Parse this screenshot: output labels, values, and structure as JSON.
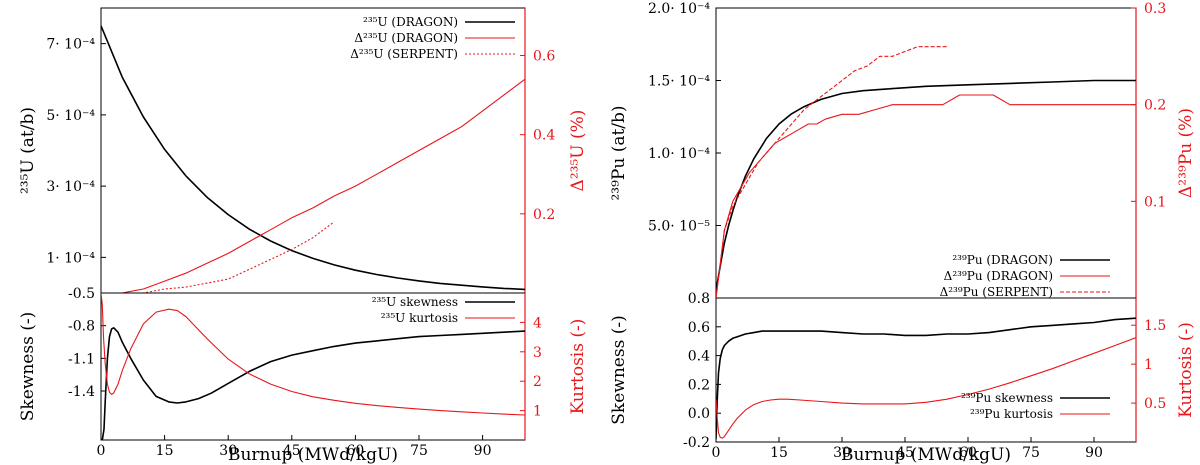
{
  "colors": {
    "black": "#000000",
    "red": "#e8161a"
  },
  "chart_data": [
    {
      "id": "left",
      "type": "line",
      "xlabel": "Burnup (MWd/kgU)",
      "xlim": [
        0,
        100
      ],
      "xticks": [
        "0",
        "15",
        "30",
        "45",
        "60",
        "75",
        "90"
      ],
      "xtick_values": [
        0,
        15,
        30,
        45,
        60,
        75,
        90
      ],
      "top": {
        "ylabel": "²³⁵U (at/b)",
        "ylim": [
          0,
          0.0008
        ],
        "yticks": [
          {
            "v": 0.0007,
            "t": "7· 10⁻⁴"
          },
          {
            "v": 0.0005,
            "t": "5· 10⁻⁴"
          },
          {
            "v": 0.0003,
            "t": "3· 10⁻⁴"
          },
          {
            "v": 0.0001,
            "t": "1· 10⁻⁴"
          }
        ],
        "y2label": "Δ²³⁵U (%)",
        "y2lim": [
          0,
          0.72
        ],
        "y2ticks": [
          {
            "v": 0.2,
            "t": "0.2"
          },
          {
            "v": 0.4,
            "t": "0.4"
          },
          {
            "v": 0.6,
            "t": "0.6"
          }
        ],
        "legend": [
          "²³⁵U (DRAGON)",
          "Δ²³⁵U (DRAGON)",
          "Δ²³⁵U (SERPENT)"
        ],
        "series": [
          {
            "axis": "y",
            "color": "black",
            "style": "solid",
            "x": [
              0,
              5,
              10,
              15,
              20,
              25,
              30,
              35,
              40,
              45,
              50,
              55,
              60,
              65,
              70,
              75,
              80,
              85,
              90,
              95,
              100
            ],
            "y": [
              0.00075,
              0.000606,
              0.000494,
              0.000403,
              0.000329,
              0.000269,
              0.00022,
              0.000179,
              0.000146,
              0.000119,
              9.7e-05,
              7.9e-05,
              6.4e-05,
              5.2e-05,
              4.2e-05,
              3.4e-05,
              2.7e-05,
              2.2e-05,
              1.7e-05,
              1.3e-05,
              1e-05
            ]
          },
          {
            "axis": "y2",
            "color": "red",
            "style": "solid",
            "x": [
              5,
              10,
              15,
              20,
              25,
              30,
              35,
              40,
              45,
              50,
              55,
              60,
              65,
              70,
              75,
              80,
              85,
              90,
              95,
              100
            ],
            "y": [
              0.0,
              0.01,
              0.03,
              0.05,
              0.075,
              0.1,
              0.13,
              0.16,
              0.19,
              0.215,
              0.245,
              0.27,
              0.3,
              0.33,
              0.36,
              0.39,
              0.42,
              0.46,
              0.5,
              0.54
            ]
          },
          {
            "axis": "y2",
            "color": "red",
            "style": "dotted",
            "x": [
              5,
              10,
              15,
              20,
              25,
              30,
              35,
              40,
              45,
              50,
              55
            ],
            "y": [
              0.0,
              0.0,
              0.01,
              0.015,
              0.025,
              0.035,
              0.06,
              0.085,
              0.11,
              0.14,
              0.18
            ]
          }
        ]
      },
      "bottom": {
        "ylabel": "Skewness (-)",
        "ylim": [
          -1.85,
          -0.5
        ],
        "yticks": [
          {
            "v": -0.5,
            "t": "-0.5"
          },
          {
            "v": -0.8,
            "t": "-0.8"
          },
          {
            "v": -1.1,
            "t": "-1.1"
          },
          {
            "v": -1.4,
            "t": "-1.4"
          }
        ],
        "y2label": "Kurtosis (-)",
        "y2lim": [
          0,
          5.0
        ],
        "y2ticks": [
          {
            "v": 1,
            "t": "1"
          },
          {
            "v": 2,
            "t": "2"
          },
          {
            "v": 3,
            "t": "3"
          },
          {
            "v": 4,
            "t": "4"
          }
        ],
        "legend": [
          "²³⁵U skewness",
          "²³⁵U kurtosis"
        ],
        "series": [
          {
            "axis": "y",
            "color": "black",
            "style": "solid",
            "x": [
              0.3,
              0.7,
              1.0,
              1.5,
              2.0,
              2.5,
              3.0,
              4.0,
              5.0,
              7.0,
              10.0,
              13.0,
              16.0,
              18.0,
              20.0,
              23.0,
              26.0,
              30.0,
              35.0,
              40.0,
              45.0,
              50.0,
              55.0,
              60.0,
              65.0,
              70.0,
              75.0,
              80.0,
              85.0,
              90.0,
              95.0,
              100.0
            ],
            "y": [
              -1.85,
              -1.75,
              -1.5,
              -1.1,
              -0.9,
              -0.83,
              -0.82,
              -0.86,
              -0.95,
              -1.1,
              -1.3,
              -1.45,
              -1.5,
              -1.51,
              -1.5,
              -1.47,
              -1.42,
              -1.33,
              -1.22,
              -1.13,
              -1.07,
              -1.03,
              -0.99,
              -0.96,
              -0.94,
              -0.92,
              -0.9,
              -0.89,
              -0.88,
              -0.87,
              -0.86,
              -0.85
            ]
          },
          {
            "axis": "y2",
            "color": "red",
            "style": "solid",
            "x": [
              0.0,
              0.3,
              0.6,
              1.0,
              1.5,
              2.0,
              2.5,
              3.0,
              4.0,
              5.0,
              7.0,
              10.0,
              13.0,
              16.0,
              18.0,
              20.0,
              25.0,
              30.0,
              35.0,
              40.0,
              45.0,
              50.0,
              55.0,
              60.0,
              65.0,
              70.0,
              75.0,
              80.0,
              85.0,
              90.0,
              95.0,
              100.0
            ],
            "y": [
              5.0,
              4.6,
              3.5,
              2.6,
              1.9,
              1.62,
              1.55,
              1.6,
              1.9,
              2.35,
              3.1,
              3.95,
              4.35,
              4.45,
              4.4,
              4.2,
              3.45,
              2.75,
              2.25,
              1.9,
              1.65,
              1.47,
              1.35,
              1.25,
              1.17,
              1.11,
              1.05,
              1.0,
              0.96,
              0.92,
              0.88,
              0.85
            ]
          }
        ]
      }
    },
    {
      "id": "right",
      "type": "line",
      "xlabel": "Burnup (MWd/kgU)",
      "xlim": [
        0,
        100
      ],
      "xticks": [
        "0",
        "15",
        "30",
        "45",
        "60",
        "75",
        "90"
      ],
      "xtick_values": [
        0,
        15,
        30,
        45,
        60,
        75,
        90
      ],
      "top": {
        "ylabel": "²³⁹Pu (at/b)",
        "ylim": [
          0,
          0.0002
        ],
        "yticks": [
          {
            "v": 0.0002,
            "t": "2.0· 10⁻⁴"
          },
          {
            "v": 0.00015,
            "t": "1.5· 10⁻⁴"
          },
          {
            "v": 0.0001,
            "t": "1.0· 10⁻⁴"
          },
          {
            "v": 5e-05,
            "t": "5.0· 10⁻⁵"
          }
        ],
        "y2label": "Δ²³⁹Pu (%)",
        "y2lim": [
          0,
          0.3
        ],
        "y2ticks": [
          {
            "v": 0.3,
            "t": "0.3"
          },
          {
            "v": 0.2,
            "t": "0.2"
          },
          {
            "v": 0.1,
            "t": "0.1"
          }
        ],
        "legend": [
          "²³⁹Pu (DRAGON)",
          "Δ²³⁹Pu (DRAGON)",
          "Δ²³⁹Pu (SERPENT)"
        ],
        "series": [
          {
            "axis": "y",
            "color": "black",
            "style": "solid",
            "x": [
              0,
              1,
              2,
              3,
              4,
              5,
              7,
              9,
              12,
              15,
              18,
              21,
              25,
              30,
              35,
              40,
              50,
              60,
              70,
              80,
              90,
              100
            ],
            "y": [
              5e-06,
              2.2e-05,
              3.8e-05,
              5e-05,
              6e-05,
              6.9e-05,
              8.4e-05,
              9.6e-05,
              0.00011,
              0.00012,
              0.000127,
              0.000132,
              0.000137,
              0.000141,
              0.000143,
              0.000144,
              0.000146,
              0.000147,
              0.000148,
              0.000149,
              0.00015,
              0.00015
            ]
          },
          {
            "axis": "y2",
            "color": "red",
            "style": "solid",
            "x": [
              0,
              2,
              4,
              6,
              8,
              10,
              12,
              14,
              16,
              18,
              20,
              22,
              24,
              26,
              30,
              34,
              38,
              42,
              46,
              50,
              54,
              58,
              62,
              66,
              70,
              80,
              90,
              100
            ],
            "y": [
              0.0,
              0.07,
              0.1,
              0.115,
              0.13,
              0.14,
              0.15,
              0.16,
              0.165,
              0.17,
              0.175,
              0.18,
              0.18,
              0.185,
              0.19,
              0.19,
              0.195,
              0.2,
              0.2,
              0.2,
              0.2,
              0.21,
              0.21,
              0.21,
              0.2,
              0.2,
              0.2,
              0.2
            ]
          },
          {
            "axis": "y2",
            "color": "red",
            "style": "dashed",
            "x": [
              0,
              2,
              4,
              6,
              8,
              10,
              12,
              15,
              18,
              21,
              24,
              27,
              30,
              33,
              36,
              39,
              42,
              45,
              48,
              51,
              55
            ],
            "y": [
              0.0,
              0.07,
              0.095,
              0.11,
              0.125,
              0.14,
              0.15,
              0.165,
              0.18,
              0.195,
              0.205,
              0.215,
              0.225,
              0.235,
              0.24,
              0.25,
              0.25,
              0.255,
              0.26,
              0.26,
              0.26
            ]
          }
        ]
      },
      "bottom": {
        "ylabel": "Skewness (-)",
        "ylim": [
          -0.2,
          0.8
        ],
        "yticks": [
          {
            "v": 0.8,
            "t": "0.8"
          },
          {
            "v": 0.6,
            "t": "0.6"
          },
          {
            "v": 0.4,
            "t": "0.4"
          },
          {
            "v": 0.2,
            "t": "0.2"
          },
          {
            "v": 0.0,
            "t": "0.0"
          },
          {
            "v": -0.2,
            "t": "-0.2"
          }
        ],
        "y2label": "Kurtosis (-)",
        "y2lim": [
          0,
          1.85
        ],
        "y2ticks": [
          {
            "v": 1.5,
            "t": "1.5"
          },
          {
            "v": 1.0,
            "t": "1"
          },
          {
            "v": 0.5,
            "t": "0.5"
          }
        ],
        "legend": [
          "²³⁹Pu skewness",
          "²³⁹Pu kurtosis"
        ],
        "series": [
          {
            "axis": "y",
            "color": "black",
            "style": "solid",
            "x": [
              0,
              0.3,
              0.6,
              1,
              1.5,
              2,
              3,
              4,
              5,
              7,
              9,
              11,
              13,
              15,
              20,
              25,
              30,
              35,
              40,
              45,
              50,
              55,
              60,
              65,
              70,
              75,
              80,
              85,
              90,
              95,
              100
            ],
            "y": [
              -0.18,
              0.1,
              0.28,
              0.38,
              0.44,
              0.47,
              0.5,
              0.52,
              0.53,
              0.55,
              0.56,
              0.57,
              0.57,
              0.57,
              0.57,
              0.57,
              0.56,
              0.55,
              0.55,
              0.54,
              0.54,
              0.55,
              0.55,
              0.56,
              0.58,
              0.6,
              0.61,
              0.62,
              0.63,
              0.65,
              0.66
            ]
          },
          {
            "axis": "y2",
            "color": "red",
            "style": "solid",
            "x": [
              0,
              0.3,
              0.6,
              1,
              1.5,
              2,
              3,
              4,
              5,
              7,
              9,
              11,
              13,
              15,
              17,
              20,
              25,
              30,
              35,
              40,
              45,
              50,
              55,
              60,
              65,
              70,
              75,
              80,
              85,
              90,
              95,
              100
            ],
            "y": [
              0.55,
              0.3,
              0.12,
              0.06,
              0.05,
              0.07,
              0.15,
              0.23,
              0.3,
              0.41,
              0.48,
              0.52,
              0.54,
              0.55,
              0.55,
              0.54,
              0.52,
              0.5,
              0.49,
              0.49,
              0.49,
              0.51,
              0.55,
              0.61,
              0.68,
              0.76,
              0.85,
              0.94,
              1.04,
              1.14,
              1.24,
              1.34
            ]
          }
        ]
      }
    }
  ]
}
